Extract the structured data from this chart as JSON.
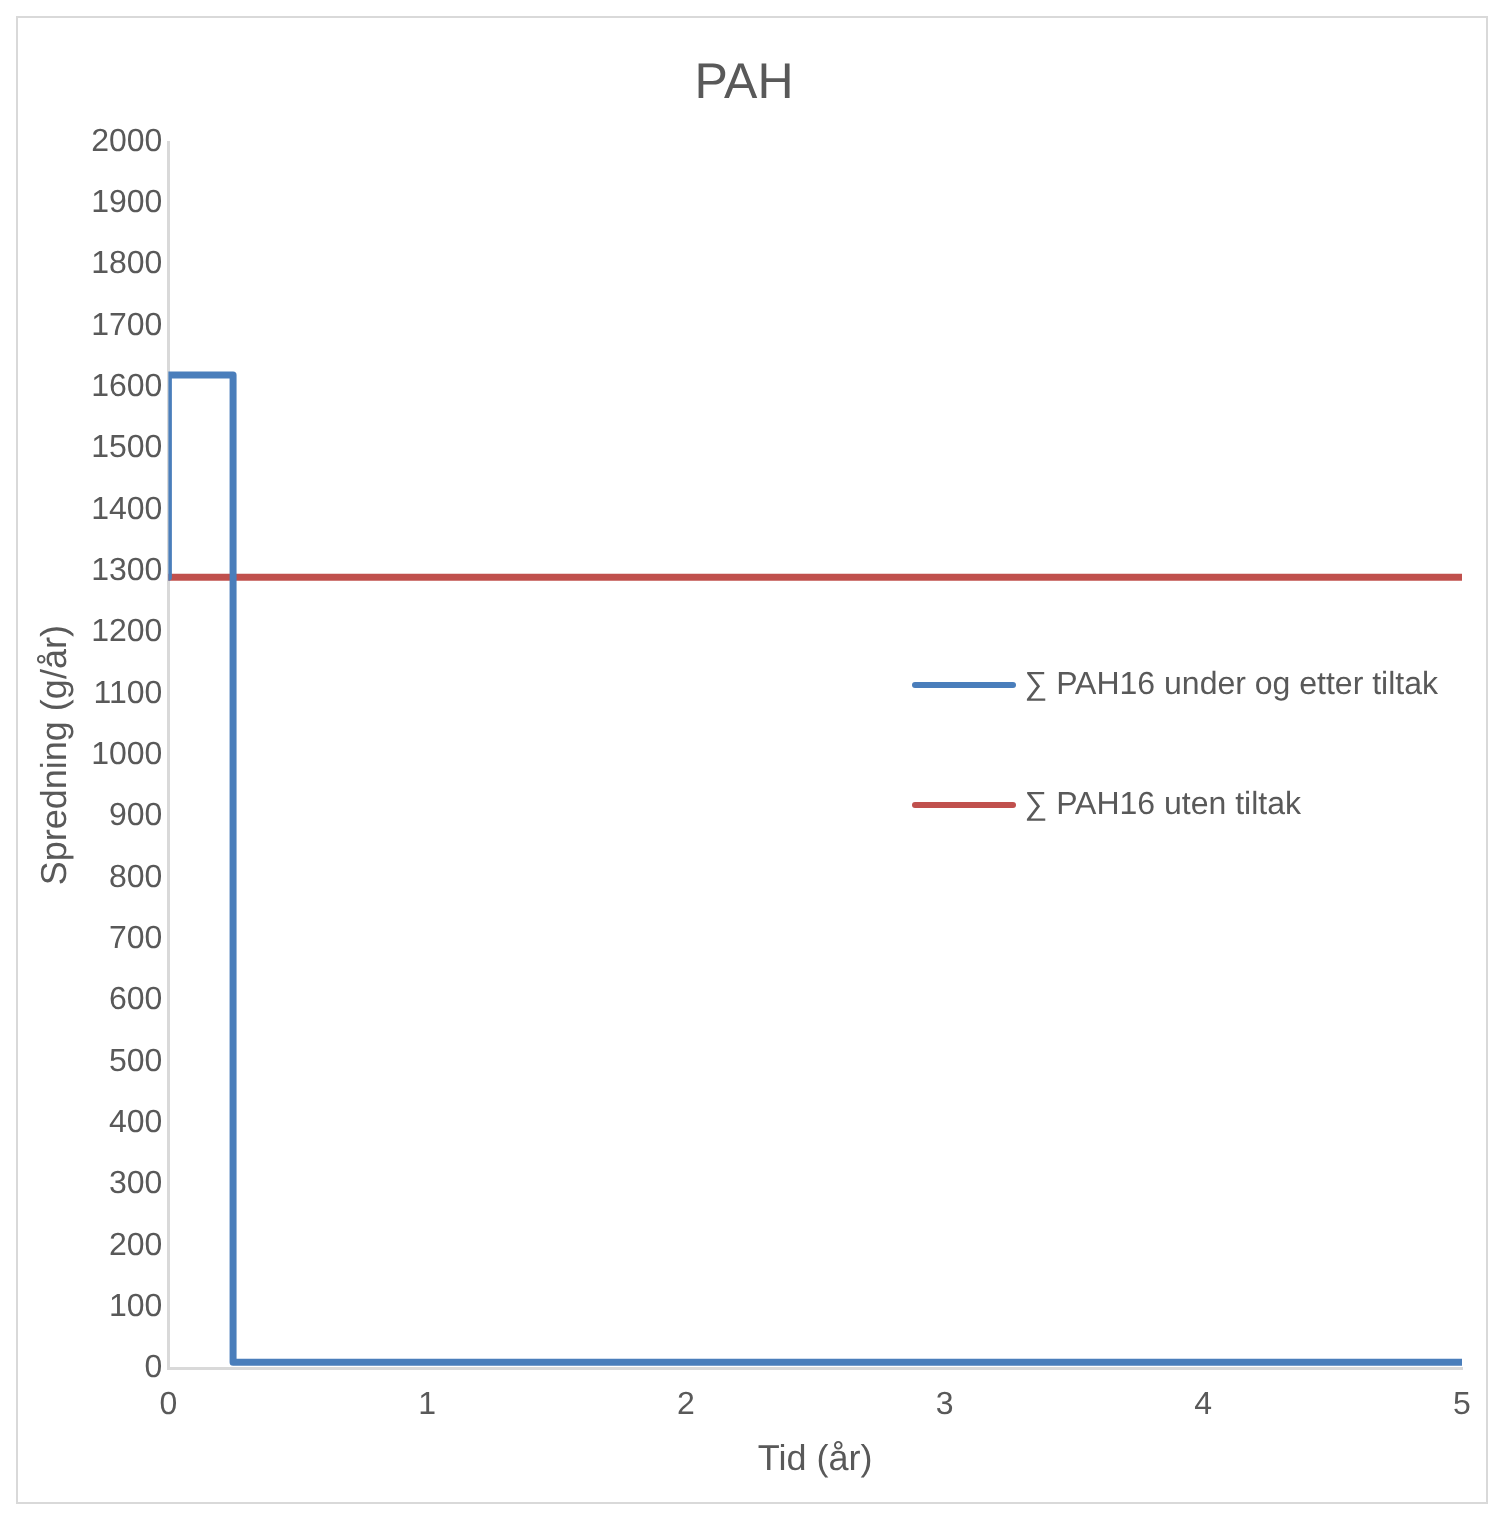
{
  "chart_data": {
    "type": "line",
    "title": "PAH",
    "xlabel": "Tid (år)",
    "ylabel": "Spredning (g/år)",
    "series": [
      {
        "name": "∑ PAH16 under og etter tiltak",
        "color": "#4a7ebb",
        "x": [
          0,
          0,
          0.25,
          0.25,
          5
        ],
        "values": [
          1290,
          1620,
          1620,
          10,
          10
        ]
      },
      {
        "name": "∑ PAH16 uten tiltak",
        "color": "#c0504d",
        "x": [
          0,
          5
        ],
        "values": [
          1290,
          1290
        ]
      }
    ],
    "xlim": [
      0,
      5
    ],
    "xticks": [
      0,
      1,
      2,
      3,
      4,
      5
    ],
    "ylim": [
      0,
      2000
    ],
    "yticks": [
      0,
      100,
      200,
      300,
      400,
      500,
      600,
      700,
      800,
      900,
      1000,
      1100,
      1200,
      1300,
      1400,
      1500,
      1600,
      1700,
      1800,
      1900,
      2000
    ],
    "grid": false,
    "legend": "right",
    "marker": "none",
    "line_style": "solid"
  }
}
